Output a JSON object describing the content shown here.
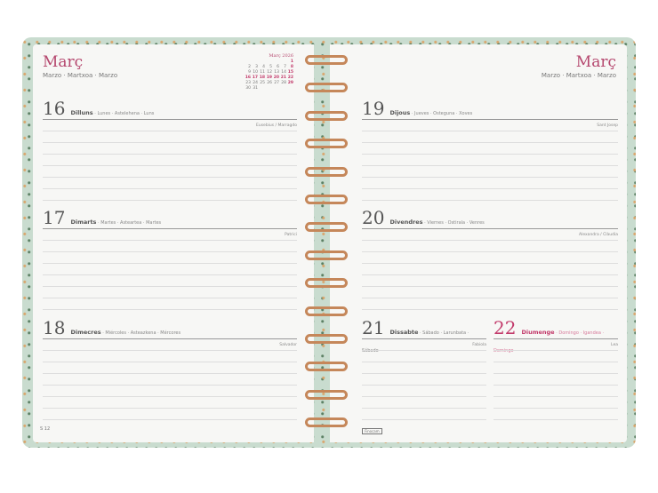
{
  "left": {
    "month": "Març",
    "month_sub": "Marzo · Martxoa · Marzo",
    "week": "S 12",
    "calendar": {
      "title": "Març 2026",
      "weeks": [
        [
          "",
          "",
          "",
          "",
          "",
          "",
          "1"
        ],
        [
          "2",
          "3",
          "4",
          "5",
          "6",
          "7",
          "8"
        ],
        [
          "9",
          "10",
          "11",
          "12",
          "13",
          "14",
          "15"
        ],
        [
          "16",
          "17",
          "18",
          "19",
          "20",
          "21",
          "22"
        ],
        [
          "23",
          "24",
          "25",
          "26",
          "27",
          "28",
          "29"
        ],
        [
          "30",
          "31",
          "",
          "",
          "",
          "",
          ""
        ]
      ]
    },
    "days": [
      {
        "num": "16",
        "name": "Dilluns",
        "langs": " · Lunes · Astelehena · Luns",
        "saint": "Eusebius / Marragdo"
      },
      {
        "num": "17",
        "name": "Dimarts",
        "langs": " · Martes · Asteartea · Martes",
        "saint": "Patrici"
      },
      {
        "num": "18",
        "name": "Dimecres",
        "langs": " · Miércoles · Asteazkena · Mércores",
        "saint": "Salvador"
      }
    ]
  },
  "right": {
    "month": "Març",
    "month_sub": "Marzo · Martxoa · Marzo",
    "brand": "Finocam",
    "days": [
      {
        "num": "19",
        "name": "Dijous",
        "langs": " · Jueves · Osteguna · Xoves",
        "saint": "Sant Josep"
      },
      {
        "num": "20",
        "name": "Divendres",
        "langs": " · Viernes · Ostirala · Venres",
        "saint": "Alexandra / Clàudia"
      },
      {
        "num": "21",
        "name": "Dissabte",
        "langs": " · Sábado · Larunbata · Sábado",
        "saint": "Fabiola"
      },
      {
        "num": "22",
        "name": "Diumenge",
        "langs": " · Domingo · Igandea · Domingo",
        "saint": "Lea"
      }
    ]
  },
  "colors": {
    "accent": "#b5476e",
    "cover": "#c9dccf",
    "rings": "#c5875a"
  }
}
